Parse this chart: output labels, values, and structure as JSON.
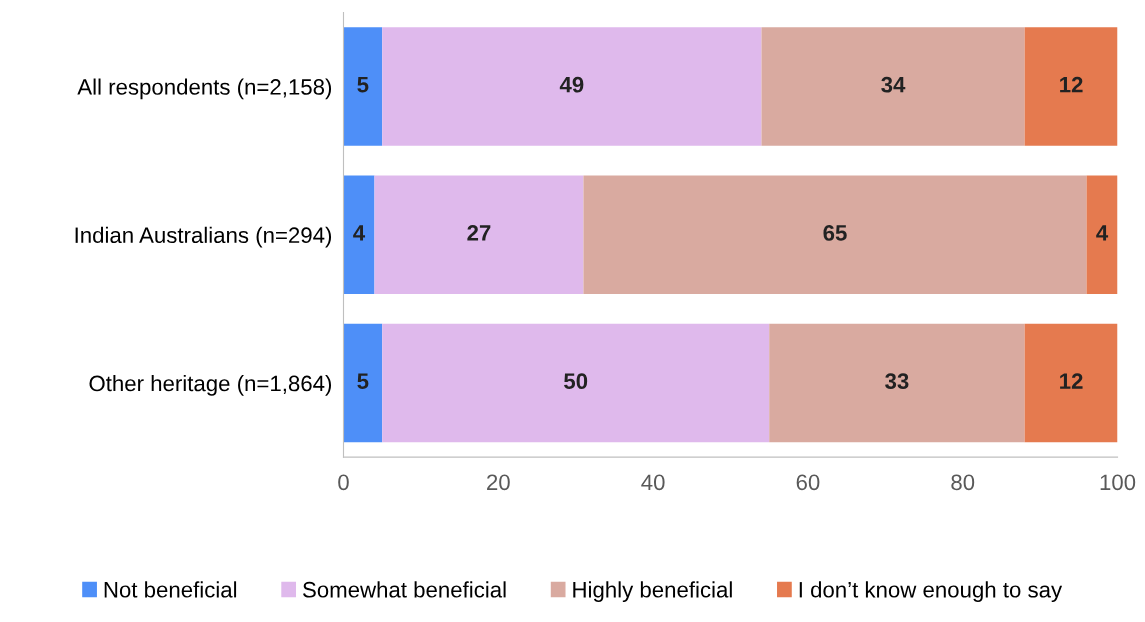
{
  "chart_data": {
    "type": "bar",
    "orientation": "horizontal",
    "stacked": true,
    "categories": [
      "All respondents (n=2,158)",
      "Indian Australians (n=294)",
      "Other heritage (n=1,864)"
    ],
    "series": [
      {
        "name": "Not beneficial",
        "color": "#4e8ff8",
        "values": [
          5,
          4,
          5
        ]
      },
      {
        "name": "Somewhat beneficial",
        "color": "#dfb9ec",
        "values": [
          49,
          27,
          50
        ]
      },
      {
        "name": "Highly beneficial",
        "color": "#d9aaa0",
        "values": [
          34,
          65,
          33
        ]
      },
      {
        "name": "I don’t know enough to say",
        "color": "#e57a4f",
        "values": [
          12,
          4,
          12
        ]
      }
    ],
    "xlim": [
      0,
      100
    ],
    "xticks": [
      0,
      20,
      40,
      60,
      80,
      100
    ],
    "data_labels": true,
    "grid": false,
    "legend": "bottom"
  }
}
